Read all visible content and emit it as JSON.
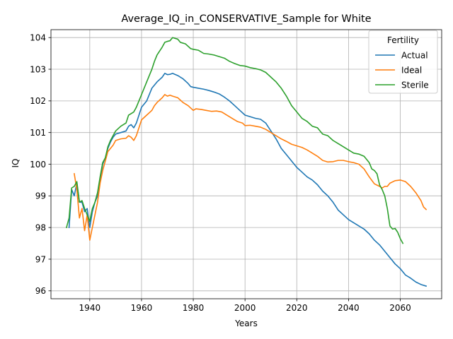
{
  "chart_data": {
    "type": "line",
    "title": "Average_IQ_in_CONSERVATIVE_Sample for White",
    "xlabel": "Years",
    "ylabel": "IQ",
    "xlim": [
      1925,
      2076
    ],
    "ylim": [
      95.75,
      104.25
    ],
    "xticks": [
      1940,
      1960,
      1980,
      2000,
      2020,
      2040,
      2060
    ],
    "yticks": [
      96,
      97,
      98,
      99,
      100,
      101,
      102,
      103,
      104
    ],
    "grid": true,
    "legend": {
      "title": "Fertility",
      "position": "top-right"
    },
    "series": [
      {
        "name": "Actual",
        "color": "#1f77b4",
        "points": [
          [
            1932,
            98.0
          ],
          [
            1933,
            99.2
          ],
          [
            1934,
            99.0
          ],
          [
            1935,
            99.4
          ],
          [
            1936,
            98.8
          ],
          [
            1937,
            98.8
          ],
          [
            1938,
            98.5
          ],
          [
            1939,
            98.6
          ],
          [
            1940,
            98.0
          ],
          [
            1941,
            98.5
          ],
          [
            1942,
            98.8
          ],
          [
            1943,
            99.0
          ],
          [
            1944,
            99.5
          ],
          [
            1945,
            100.0
          ],
          [
            1946,
            100.2
          ],
          [
            1947,
            100.5
          ],
          [
            1948,
            100.7
          ],
          [
            1949,
            100.85
          ],
          [
            1950,
            100.95
          ],
          [
            1952,
            101.0
          ],
          [
            1954,
            101.05
          ],
          [
            1955,
            101.2
          ],
          [
            1956,
            101.25
          ],
          [
            1957,
            101.15
          ],
          [
            1958,
            101.3
          ],
          [
            1960,
            101.8
          ],
          [
            1962,
            102.0
          ],
          [
            1964,
            102.4
          ],
          [
            1966,
            102.6
          ],
          [
            1968,
            102.75
          ],
          [
            1969,
            102.87
          ],
          [
            1970,
            102.83
          ],
          [
            1971,
            102.84
          ],
          [
            1972,
            102.87
          ],
          [
            1974,
            102.8
          ],
          [
            1976,
            102.7
          ],
          [
            1978,
            102.55
          ],
          [
            1979,
            102.45
          ],
          [
            1980,
            102.43
          ],
          [
            1982,
            102.4
          ],
          [
            1984,
            102.37
          ],
          [
            1986,
            102.33
          ],
          [
            1988,
            102.28
          ],
          [
            1990,
            102.22
          ],
          [
            1992,
            102.12
          ],
          [
            1994,
            102.0
          ],
          [
            1996,
            101.85
          ],
          [
            1998,
            101.7
          ],
          [
            2000,
            101.55
          ],
          [
            2002,
            101.5
          ],
          [
            2004,
            101.45
          ],
          [
            2006,
            101.42
          ],
          [
            2008,
            101.3
          ],
          [
            2010,
            101.05
          ],
          [
            2012,
            100.8
          ],
          [
            2014,
            100.5
          ],
          [
            2016,
            100.3
          ],
          [
            2018,
            100.1
          ],
          [
            2020,
            99.9
          ],
          [
            2022,
            99.75
          ],
          [
            2024,
            99.6
          ],
          [
            2026,
            99.5
          ],
          [
            2028,
            99.35
          ],
          [
            2030,
            99.15
          ],
          [
            2032,
            99.0
          ],
          [
            2034,
            98.8
          ],
          [
            2036,
            98.55
          ],
          [
            2038,
            98.4
          ],
          [
            2040,
            98.25
          ],
          [
            2042,
            98.15
          ],
          [
            2044,
            98.05
          ],
          [
            2046,
            97.95
          ],
          [
            2048,
            97.8
          ],
          [
            2050,
            97.6
          ],
          [
            2052,
            97.45
          ],
          [
            2054,
            97.25
          ],
          [
            2056,
            97.05
          ],
          [
            2058,
            96.85
          ],
          [
            2060,
            96.7
          ],
          [
            2062,
            96.5
          ],
          [
            2064,
            96.4
          ],
          [
            2066,
            96.28
          ],
          [
            2068,
            96.2
          ],
          [
            2070,
            96.15
          ]
        ]
      },
      {
        "name": "Ideal",
        "color": "#ff7f0e",
        "points": [
          [
            1934,
            99.7
          ],
          [
            1935,
            99.2
          ],
          [
            1936,
            98.3
          ],
          [
            1937,
            98.6
          ],
          [
            1938,
            97.9
          ],
          [
            1939,
            98.4
          ],
          [
            1940,
            97.6
          ],
          [
            1941,
            98.0
          ],
          [
            1942,
            98.4
          ],
          [
            1943,
            98.8
          ],
          [
            1944,
            99.4
          ],
          [
            1945,
            99.8
          ],
          [
            1946,
            100.1
          ],
          [
            1947,
            100.4
          ],
          [
            1948,
            100.5
          ],
          [
            1949,
            100.6
          ],
          [
            1950,
            100.75
          ],
          [
            1952,
            100.8
          ],
          [
            1954,
            100.82
          ],
          [
            1955,
            100.9
          ],
          [
            1956,
            100.85
          ],
          [
            1957,
            100.75
          ],
          [
            1958,
            100.9
          ],
          [
            1960,
            101.4
          ],
          [
            1962,
            101.55
          ],
          [
            1964,
            101.7
          ],
          [
            1965,
            101.85
          ],
          [
            1966,
            101.95
          ],
          [
            1968,
            102.1
          ],
          [
            1969,
            102.2
          ],
          [
            1970,
            102.15
          ],
          [
            1971,
            102.18
          ],
          [
            1972,
            102.15
          ],
          [
            1974,
            102.1
          ],
          [
            1976,
            101.95
          ],
          [
            1978,
            101.85
          ],
          [
            1980,
            101.7
          ],
          [
            1981,
            101.75
          ],
          [
            1983,
            101.73
          ],
          [
            1985,
            101.7
          ],
          [
            1987,
            101.67
          ],
          [
            1989,
            101.68
          ],
          [
            1991,
            101.65
          ],
          [
            1993,
            101.55
          ],
          [
            1995,
            101.45
          ],
          [
            1997,
            101.35
          ],
          [
            1999,
            101.3
          ],
          [
            2000,
            101.22
          ],
          [
            2002,
            101.23
          ],
          [
            2004,
            101.2
          ],
          [
            2006,
            101.17
          ],
          [
            2008,
            101.1
          ],
          [
            2010,
            101.0
          ],
          [
            2012,
            100.9
          ],
          [
            2014,
            100.8
          ],
          [
            2016,
            100.72
          ],
          [
            2018,
            100.63
          ],
          [
            2020,
            100.58
          ],
          [
            2022,
            100.53
          ],
          [
            2024,
            100.45
          ],
          [
            2026,
            100.35
          ],
          [
            2028,
            100.25
          ],
          [
            2030,
            100.12
          ],
          [
            2032,
            100.07
          ],
          [
            2034,
            100.08
          ],
          [
            2036,
            100.12
          ],
          [
            2038,
            100.12
          ],
          [
            2040,
            100.08
          ],
          [
            2042,
            100.05
          ],
          [
            2044,
            100.0
          ],
          [
            2046,
            99.85
          ],
          [
            2048,
            99.6
          ],
          [
            2050,
            99.38
          ],
          [
            2052,
            99.3
          ],
          [
            2053,
            99.25
          ],
          [
            2054,
            99.3
          ],
          [
            2055,
            99.3
          ],
          [
            2056,
            99.4
          ],
          [
            2058,
            99.48
          ],
          [
            2060,
            99.5
          ],
          [
            2062,
            99.45
          ],
          [
            2064,
            99.3
          ],
          [
            2066,
            99.1
          ],
          [
            2068,
            98.85
          ],
          [
            2069,
            98.65
          ],
          [
            2070,
            98.57
          ]
        ]
      },
      {
        "name": "Sterile",
        "color": "#2ca02c",
        "points": [
          [
            1931,
            98.0
          ],
          [
            1932,
            98.3
          ],
          [
            1933,
            99.25
          ],
          [
            1934,
            99.3
          ],
          [
            1935,
            99.45
          ],
          [
            1936,
            98.8
          ],
          [
            1937,
            98.85
          ],
          [
            1938,
            98.6
          ],
          [
            1939,
            98.4
          ],
          [
            1940,
            98.2
          ],
          [
            1941,
            98.6
          ],
          [
            1942,
            98.8
          ],
          [
            1943,
            99.1
          ],
          [
            1944,
            99.6
          ],
          [
            1945,
            100.05
          ],
          [
            1946,
            100.2
          ],
          [
            1947,
            100.55
          ],
          [
            1948,
            100.75
          ],
          [
            1949,
            100.9
          ],
          [
            1950,
            101.05
          ],
          [
            1952,
            101.2
          ],
          [
            1954,
            101.3
          ],
          [
            1955,
            101.55
          ],
          [
            1956,
            101.6
          ],
          [
            1957,
            101.65
          ],
          [
            1958,
            101.8
          ],
          [
            1960,
            102.2
          ],
          [
            1962,
            102.6
          ],
          [
            1964,
            103.0
          ],
          [
            1965,
            103.25
          ],
          [
            1966,
            103.45
          ],
          [
            1968,
            103.7
          ],
          [
            1969,
            103.85
          ],
          [
            1970,
            103.88
          ],
          [
            1971,
            103.9
          ],
          [
            1972,
            104.0
          ],
          [
            1974,
            103.95
          ],
          [
            1975,
            103.85
          ],
          [
            1977,
            103.8
          ],
          [
            1979,
            103.65
          ],
          [
            1980,
            103.63
          ],
          [
            1982,
            103.6
          ],
          [
            1984,
            103.5
          ],
          [
            1986,
            103.48
          ],
          [
            1988,
            103.45
          ],
          [
            1990,
            103.4
          ],
          [
            1992,
            103.35
          ],
          [
            1994,
            103.25
          ],
          [
            1996,
            103.18
          ],
          [
            1998,
            103.12
          ],
          [
            2000,
            103.1
          ],
          [
            2002,
            103.05
          ],
          [
            2004,
            103.02
          ],
          [
            2006,
            102.98
          ],
          [
            2008,
            102.9
          ],
          [
            2010,
            102.75
          ],
          [
            2012,
            102.6
          ],
          [
            2014,
            102.4
          ],
          [
            2016,
            102.15
          ],
          [
            2018,
            101.85
          ],
          [
            2020,
            101.65
          ],
          [
            2022,
            101.45
          ],
          [
            2024,
            101.35
          ],
          [
            2026,
            101.2
          ],
          [
            2028,
            101.15
          ],
          [
            2030,
            100.95
          ],
          [
            2032,
            100.9
          ],
          [
            2034,
            100.75
          ],
          [
            2036,
            100.65
          ],
          [
            2038,
            100.55
          ],
          [
            2040,
            100.45
          ],
          [
            2042,
            100.35
          ],
          [
            2044,
            100.32
          ],
          [
            2046,
            100.25
          ],
          [
            2048,
            100.05
          ],
          [
            2049,
            99.85
          ],
          [
            2050,
            99.8
          ],
          [
            2051,
            99.7
          ],
          [
            2052,
            99.35
          ],
          [
            2053,
            99.2
          ],
          [
            2054,
            99.0
          ],
          [
            2055,
            98.6
          ],
          [
            2056,
            98.05
          ],
          [
            2057,
            97.95
          ],
          [
            2058,
            97.97
          ],
          [
            2059,
            97.85
          ],
          [
            2060,
            97.65
          ],
          [
            2061,
            97.5
          ]
        ]
      }
    ]
  }
}
